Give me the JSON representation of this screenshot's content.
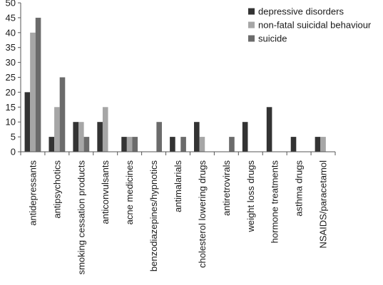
{
  "chart_data": {
    "type": "bar",
    "title": "",
    "xlabel": "",
    "ylabel": "",
    "ylim": [
      0,
      50
    ],
    "yticks": [
      0,
      5,
      10,
      15,
      20,
      25,
      30,
      35,
      40,
      45,
      50
    ],
    "grid": false,
    "legend_position": "top-right",
    "categories": [
      "antidepressants",
      "antipsychotics",
      "smoking cessation products",
      "anticonvulsants",
      "acne medicines",
      "benzodiazepines/hypnotics",
      "antimalarials",
      "cholesterol lowering drugs",
      "antiretrovirals",
      "weight loss drugs",
      "hormone treatments",
      "asthma drugs",
      "NSAIDS/paracetamol"
    ],
    "series": [
      {
        "name": "depressive disorders",
        "color": "#333333",
        "values": [
          20,
          5,
          10,
          10,
          5,
          0,
          5,
          10,
          0,
          10,
          15,
          5,
          5
        ]
      },
      {
        "name": "non-fatal suicidal behaviour",
        "color": "#a6a6a6",
        "values": [
          40,
          15,
          10,
          15,
          5,
          0,
          0,
          5,
          0,
          0,
          0,
          0,
          5
        ]
      },
      {
        "name": "suicide",
        "color": "#6b6b6b",
        "values": [
          45,
          25,
          5,
          0,
          5,
          10,
          5,
          0,
          5,
          0,
          0,
          0,
          0
        ]
      }
    ]
  }
}
